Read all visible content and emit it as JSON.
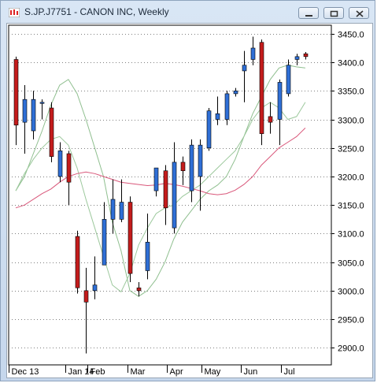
{
  "window": {
    "title": "S.JP.J7751 - CANON INC, Weekly",
    "app_icon": "chart-app-icon",
    "buttons": [
      {
        "name": "minimize-button",
        "icon": "minimize-icon"
      },
      {
        "name": "restore-button",
        "icon": "restore-icon"
      },
      {
        "name": "close-button",
        "icon": "close-icon"
      }
    ]
  },
  "colors": {
    "up": "#2f6fd6",
    "down": "#c41c1c",
    "ma_short": "#8fbf8f",
    "ma_mid": "#9cc89c",
    "ma_long": "#d9577a",
    "wick": "#000000",
    "grid": "#7f7f7f"
  },
  "chart_data": {
    "type": "candlestick",
    "title": "",
    "ylim": [
      2870,
      3465
    ],
    "y_ticks": [
      2900,
      2950,
      3000,
      3050,
      3100,
      3150,
      3200,
      3250,
      3300,
      3350,
      3400,
      3450
    ],
    "y_tick_labels": [
      "2900.0",
      "2950.0",
      "3000.0",
      "3050.0",
      "3100.0",
      "3150.0",
      "3200.0",
      "3250.0",
      "3300.0",
      "3350.0",
      "3400.0",
      "3450.0"
    ],
    "x_labels": [
      {
        "label": "Dec 13",
        "index": 0
      },
      {
        "label": "Jan 14",
        "index": 6.5
      },
      {
        "label": "Feb",
        "index": 9
      },
      {
        "label": "Mar",
        "index": 13.5
      },
      {
        "label": "Apr",
        "index": 18
      },
      {
        "label": "May",
        "index": 22
      },
      {
        "label": "Jun",
        "index": 26.5
      },
      {
        "label": "Jul",
        "index": 31
      }
    ],
    "candles": [
      {
        "o": 3405,
        "h": 3410,
        "l": 3255,
        "c": 3290
      },
      {
        "o": 3295,
        "h": 3360,
        "l": 3240,
        "c": 3335
      },
      {
        "o": 3280,
        "h": 3350,
        "l": 3265,
        "c": 3335
      },
      {
        "o": 3330,
        "h": 3335,
        "l": 3300,
        "c": 3330
      },
      {
        "o": 3320,
        "h": 3330,
        "l": 3225,
        "c": 3235
      },
      {
        "o": 3200,
        "h": 3260,
        "l": 3190,
        "c": 3245
      },
      {
        "o": 3240,
        "h": 3245,
        "l": 3150,
        "c": 3190
      },
      {
        "o": 3095,
        "h": 3105,
        "l": 2995,
        "c": 3005
      },
      {
        "o": 3000,
        "h": 3040,
        "l": 2890,
        "c": 2980
      },
      {
        "o": 3000,
        "h": 3060,
        "l": 2985,
        "c": 3010
      },
      {
        "o": 3045,
        "h": 3155,
        "l": 3045,
        "c": 3125
      },
      {
        "o": 3125,
        "h": 3195,
        "l": 3100,
        "c": 3160
      },
      {
        "o": 3125,
        "h": 3195,
        "l": 3120,
        "c": 3155
      },
      {
        "o": 3155,
        "h": 3165,
        "l": 3015,
        "c": 3030
      },
      {
        "o": 3005,
        "h": 3015,
        "l": 2990,
        "c": 3000
      },
      {
        "o": 3035,
        "h": 3135,
        "l": 3020,
        "c": 3085
      },
      {
        "o": 3175,
        "h": 3215,
        "l": 3165,
        "c": 3215
      },
      {
        "o": 3210,
        "h": 3220,
        "l": 3115,
        "c": 3145
      },
      {
        "o": 3110,
        "h": 3260,
        "l": 3100,
        "c": 3225
      },
      {
        "o": 3225,
        "h": 3235,
        "l": 3185,
        "c": 3210
      },
      {
        "o": 3175,
        "h": 3265,
        "l": 3155,
        "c": 3255
      },
      {
        "o": 3200,
        "h": 3265,
        "l": 3140,
        "c": 3255
      },
      {
        "o": 3250,
        "h": 3320,
        "l": 3245,
        "c": 3315
      },
      {
        "o": 3300,
        "h": 3340,
        "l": 3290,
        "c": 3310
      },
      {
        "o": 3300,
        "h": 3350,
        "l": 3290,
        "c": 3345
      },
      {
        "o": 3345,
        "h": 3355,
        "l": 3340,
        "c": 3350
      },
      {
        "o": 3385,
        "h": 3420,
        "l": 3330,
        "c": 3395
      },
      {
        "o": 3405,
        "h": 3445,
        "l": 3395,
        "c": 3425
      },
      {
        "o": 3435,
        "h": 3440,
        "l": 3255,
        "c": 3275
      },
      {
        "o": 3305,
        "h": 3330,
        "l": 3275,
        "c": 3295
      },
      {
        "o": 3300,
        "h": 3370,
        "l": 3255,
        "c": 3365
      },
      {
        "o": 3345,
        "h": 3405,
        "l": 3340,
        "c": 3395
      },
      {
        "o": 3405,
        "h": 3415,
        "l": 3395,
        "c": 3410
      },
      {
        "o": 3415,
        "h": 3418,
        "l": 3405,
        "c": 3410
      }
    ],
    "moving_averages": [
      {
        "id": "ma_short",
        "values": [
          3175,
          3200,
          3240,
          3280,
          3325,
          3360,
          3370,
          3345,
          3300,
          3250,
          3200,
          3120,
          3070,
          3000,
          2990,
          3000,
          3020,
          3050,
          3090,
          3120,
          3140,
          3160,
          3175,
          3185,
          3200,
          3230,
          3270,
          3310,
          3340,
          3370,
          3390,
          3395,
          3392,
          3390
        ]
      },
      {
        "id": "ma_mid",
        "values": [
          3175,
          3205,
          3230,
          3250,
          3265,
          3270,
          3255,
          3215,
          3160,
          3110,
          3060,
          3010,
          2998,
          3030,
          3080,
          3110,
          3135,
          3145,
          3150,
          3165,
          3175,
          3185,
          3200,
          3215,
          3230,
          3245,
          3270,
          3300,
          3320,
          3330,
          3320,
          3300,
          3305,
          3330
        ]
      },
      {
        "id": "ma_long",
        "values": [
          3145,
          3150,
          3160,
          3170,
          3178,
          3190,
          3200,
          3205,
          3208,
          3205,
          3200,
          3195,
          3190,
          3188,
          3186,
          3184,
          3185,
          3188,
          3186,
          3183,
          3179,
          3175,
          3170,
          3168,
          3170,
          3176,
          3186,
          3200,
          3220,
          3235,
          3250,
          3260,
          3270,
          3285
        ]
      }
    ]
  }
}
